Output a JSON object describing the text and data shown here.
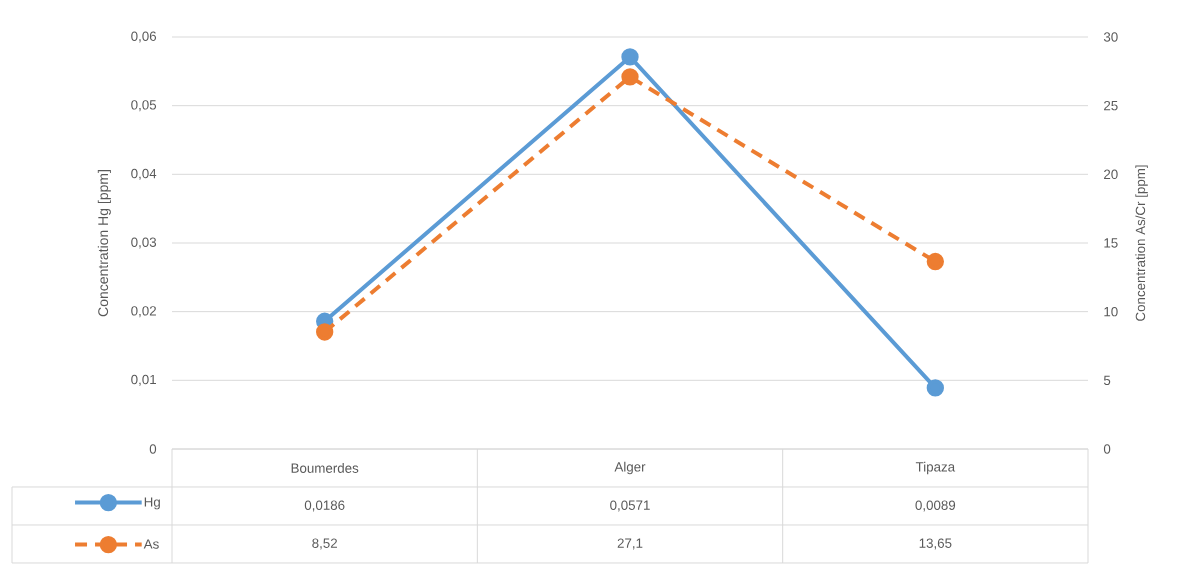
{
  "chart_data": {
    "type": "line",
    "ylabel": "Concentration Hg [ppm]",
    "y2label": "Concentration As/Cr [ppm]",
    "categories": [
      "Boumerdes",
      "Alger",
      "Tipaza"
    ],
    "series": [
      {
        "name": "Hg",
        "color": "#5b9bd5",
        "values": [
          0.0186,
          0.0571,
          0.0089
        ],
        "value_labels": [
          "0,0186",
          "0,0571",
          "0,0089"
        ],
        "line_style": "solid"
      },
      {
        "name": "As",
        "color": "#ed7d31",
        "values": [
          8.52,
          27.1,
          13.65
        ],
        "value_labels": [
          "8,52",
          "27,1",
          "13,65"
        ],
        "line_style": "dashed",
        "axis": "y2"
      }
    ],
    "ylim": [
      0,
      0.06
    ],
    "yticks": [
      0,
      {
        "value": 0.01,
        "label": "0,01"
      },
      {
        "value": 0.02,
        "label": "0,02"
      },
      {
        "value": 0.03,
        "label": "0,03"
      },
      {
        "value": 0.04,
        "label": "0,04"
      },
      {
        "value": 0.05,
        "label": "0,05"
      },
      {
        "value": 0.06,
        "label": "0,06"
      }
    ],
    "y2lim": [
      0,
      30
    ],
    "y2ticks": [
      0,
      5,
      10,
      15,
      20,
      25,
      30
    ],
    "grid": "y",
    "legend": "bottom",
    "marker": "circle"
  }
}
